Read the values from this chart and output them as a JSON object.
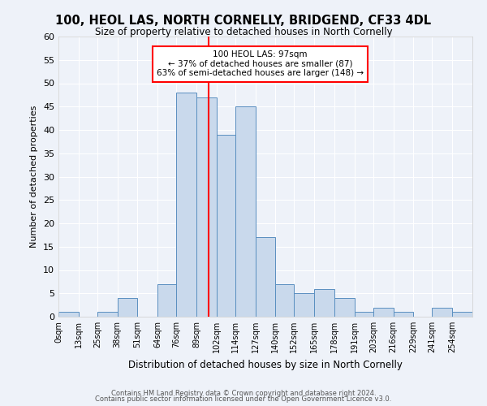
{
  "title": "100, HEOL LAS, NORTH CORNELLY, BRIDGEND, CF33 4DL",
  "subtitle": "Size of property relative to detached houses in North Cornelly",
  "xlabel": "Distribution of detached houses by size in North Cornelly",
  "ylabel": "Number of detached properties",
  "bin_labels": [
    "0sqm",
    "13sqm",
    "25sqm",
    "38sqm",
    "51sqm",
    "64sqm",
    "76sqm",
    "89sqm",
    "102sqm",
    "114sqm",
    "127sqm",
    "140sqm",
    "152sqm",
    "165sqm",
    "178sqm",
    "191sqm",
    "203sqm",
    "216sqm",
    "229sqm",
    "241sqm",
    "254sqm"
  ],
  "bar_values": [
    1,
    0,
    1,
    4,
    0,
    7,
    48,
    47,
    39,
    45,
    17,
    7,
    5,
    6,
    4,
    1,
    2,
    1,
    0,
    2,
    1
  ],
  "bar_color": "#c9d9ec",
  "bar_edge_color": "#5a8fc0",
  "property_line_x": 97,
  "bin_edges": [
    0,
    13,
    25,
    38,
    51,
    64,
    76,
    89,
    102,
    114,
    127,
    140,
    152,
    165,
    178,
    191,
    203,
    216,
    229,
    241,
    254,
    267
  ],
  "annotation_text": "100 HEOL LAS: 97sqm\n← 37% of detached houses are smaller (87)\n63% of semi-detached houses are larger (148) →",
  "annotation_box_color": "white",
  "annotation_box_edge": "red",
  "vline_color": "red",
  "ylim": [
    0,
    60
  ],
  "yticks": [
    0,
    5,
    10,
    15,
    20,
    25,
    30,
    35,
    40,
    45,
    50,
    55,
    60
  ],
  "footer1": "Contains HM Land Registry data © Crown copyright and database right 2024.",
  "footer2": "Contains public sector information licensed under the Open Government Licence v3.0.",
  "bg_color": "#eef2f9",
  "grid_color": "white"
}
